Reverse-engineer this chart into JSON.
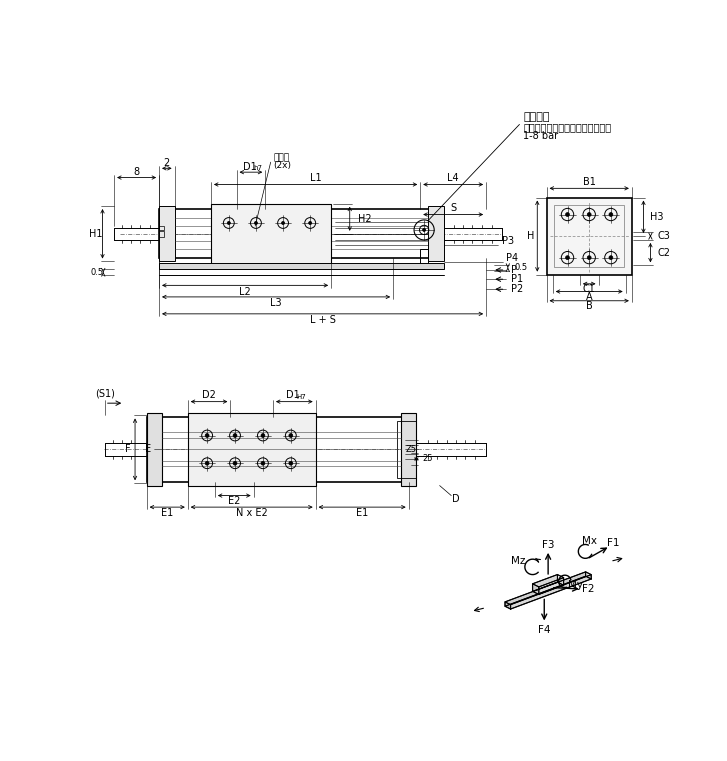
{
  "bg": "#ffffff",
  "lc": "#000000",
  "air1": "空气接头",
  "air2": "干燥或已上油的处理后的压缩空气",
  "air3": "1-8 bar",
  "cx1": "定心环",
  "cx2": "(2x)"
}
